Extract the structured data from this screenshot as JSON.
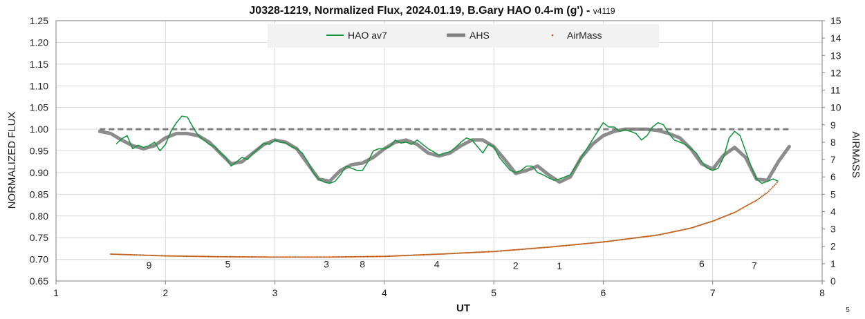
{
  "chart_data": {
    "type": "line",
    "title_main": "J0328-1219, Normalized Flux, 2024.01.19, B.Gary HAO 0.4-m (g')",
    "title_dash": " - ",
    "title_version": "v4119",
    "xlabel": "UT",
    "ylabel": "NORMALIZED FLUX",
    "y2label": "AIRMASS",
    "corner_note": "5",
    "xlim": [
      1,
      8
    ],
    "ylim": [
      0.65,
      1.25
    ],
    "y2lim": [
      0,
      15
    ],
    "x_ticks": [
      "1",
      "2",
      "3",
      "4",
      "5",
      "6",
      "7",
      "8"
    ],
    "y_ticks": [
      "0.65",
      "0.70",
      "0.75",
      "0.80",
      "0.85",
      "0.90",
      "0.95",
      "1.00",
      "1.05",
      "1.10",
      "1.15",
      "1.20",
      "1.25"
    ],
    "y2_ticks": [
      "0",
      "1",
      "2",
      "3",
      "4",
      "5",
      "6",
      "7",
      "8",
      "9",
      "10",
      "11",
      "12",
      "13",
      "14",
      "15"
    ],
    "grid": true,
    "legend_position": "top-center",
    "reference_line": {
      "y": 1.0,
      "x_start": 1.4,
      "x_end": 7.7,
      "color": "#7f7f7f"
    },
    "series": [
      {
        "name": "HAO av7",
        "color": "#1a9641",
        "axis": "left",
        "points": [
          [
            1.55,
            0.966
          ],
          [
            1.6,
            0.978
          ],
          [
            1.65,
            0.985
          ],
          [
            1.7,
            0.955
          ],
          [
            1.75,
            0.963
          ],
          [
            1.8,
            0.958
          ],
          [
            1.85,
            0.962
          ],
          [
            1.9,
            0.97
          ],
          [
            1.95,
            0.95
          ],
          [
            2.0,
            0.965
          ],
          [
            2.05,
            0.995
          ],
          [
            2.1,
            1.015
          ],
          [
            2.15,
            1.03
          ],
          [
            2.2,
            1.028
          ],
          [
            2.25,
            1.005
          ],
          [
            2.3,
            0.985
          ],
          [
            2.35,
            0.975
          ],
          [
            2.4,
            0.965
          ],
          [
            2.45,
            0.96
          ],
          [
            2.5,
            0.945
          ],
          [
            2.55,
            0.935
          ],
          [
            2.6,
            0.915
          ],
          [
            2.65,
            0.925
          ],
          [
            2.7,
            0.935
          ],
          [
            2.75,
            0.93
          ],
          [
            2.8,
            0.945
          ],
          [
            2.85,
            0.955
          ],
          [
            2.9,
            0.968
          ],
          [
            2.95,
            0.965
          ],
          [
            3.0,
            0.975
          ],
          [
            3.05,
            0.97
          ],
          [
            3.1,
            0.968
          ],
          [
            3.15,
            0.96
          ],
          [
            3.2,
            0.955
          ],
          [
            3.25,
            0.945
          ],
          [
            3.3,
            0.925
          ],
          [
            3.35,
            0.9
          ],
          [
            3.4,
            0.885
          ],
          [
            3.45,
            0.878
          ],
          [
            3.5,
            0.875
          ],
          [
            3.55,
            0.88
          ],
          [
            3.6,
            0.895
          ],
          [
            3.65,
            0.915
          ],
          [
            3.7,
            0.91
          ],
          [
            3.75,
            0.905
          ],
          [
            3.8,
            0.905
          ],
          [
            3.85,
            0.925
          ],
          [
            3.9,
            0.95
          ],
          [
            3.95,
            0.955
          ],
          [
            4.0,
            0.955
          ],
          [
            4.05,
            0.96
          ],
          [
            4.1,
            0.975
          ],
          [
            4.15,
            0.968
          ],
          [
            4.2,
            0.97
          ],
          [
            4.25,
            0.965
          ],
          [
            4.3,
            0.975
          ],
          [
            4.35,
            0.965
          ],
          [
            4.4,
            0.955
          ],
          [
            4.45,
            0.948
          ],
          [
            4.5,
            0.94
          ],
          [
            4.55,
            0.945
          ],
          [
            4.6,
            0.948
          ],
          [
            4.65,
            0.958
          ],
          [
            4.7,
            0.97
          ],
          [
            4.75,
            0.98
          ],
          [
            4.8,
            0.975
          ],
          [
            4.85,
            0.96
          ],
          [
            4.9,
            0.945
          ],
          [
            4.95,
            0.965
          ],
          [
            5.0,
            0.96
          ],
          [
            5.05,
            0.935
          ],
          [
            5.1,
            0.92
          ],
          [
            5.15,
            0.905
          ],
          [
            5.2,
            0.9
          ],
          [
            5.25,
            0.905
          ],
          [
            5.3,
            0.915
          ],
          [
            5.35,
            0.915
          ],
          [
            5.4,
            0.9
          ],
          [
            5.45,
            0.895
          ],
          [
            5.5,
            0.888
          ],
          [
            5.55,
            0.882
          ],
          [
            5.6,
            0.885
          ],
          [
            5.65,
            0.89
          ],
          [
            5.7,
            0.895
          ],
          [
            5.75,
            0.915
          ],
          [
            5.8,
            0.935
          ],
          [
            5.85,
            0.955
          ],
          [
            5.9,
            0.975
          ],
          [
            5.95,
            0.995
          ],
          [
            6.0,
            1.015
          ],
          [
            6.05,
            1.005
          ],
          [
            6.1,
            1.005
          ],
          [
            6.15,
            0.995
          ],
          [
            6.2,
            0.998
          ],
          [
            6.25,
            0.995
          ],
          [
            6.3,
            0.99
          ],
          [
            6.35,
            0.975
          ],
          [
            6.4,
            0.985
          ],
          [
            6.45,
            1.005
          ],
          [
            6.5,
            1.015
          ],
          [
            6.55,
            1.01
          ],
          [
            6.6,
            0.99
          ],
          [
            6.65,
            0.975
          ],
          [
            6.7,
            0.97
          ],
          [
            6.75,
            0.965
          ],
          [
            6.8,
            0.955
          ],
          [
            6.85,
            0.945
          ],
          [
            6.9,
            0.925
          ],
          [
            6.95,
            0.91
          ],
          [
            7.0,
            0.905
          ],
          [
            7.05,
            0.91
          ],
          [
            7.1,
            0.935
          ],
          [
            7.15,
            0.98
          ],
          [
            7.2,
            0.995
          ],
          [
            7.25,
            0.985
          ],
          [
            7.3,
            0.95
          ],
          [
            7.35,
            0.915
          ],
          [
            7.4,
            0.885
          ],
          [
            7.45,
            0.875
          ],
          [
            7.5,
            0.88
          ],
          [
            7.55,
            0.885
          ],
          [
            7.6,
            0.88
          ]
        ]
      },
      {
        "name": "AHS",
        "color": "#808080",
        "axis": "left",
        "points": [
          [
            1.4,
            0.995
          ],
          [
            1.5,
            0.99
          ],
          [
            1.6,
            0.975
          ],
          [
            1.7,
            0.962
          ],
          [
            1.8,
            0.955
          ],
          [
            1.9,
            0.962
          ],
          [
            2.0,
            0.98
          ],
          [
            2.1,
            0.99
          ],
          [
            2.2,
            0.99
          ],
          [
            2.3,
            0.985
          ],
          [
            2.4,
            0.97
          ],
          [
            2.5,
            0.945
          ],
          [
            2.6,
            0.92
          ],
          [
            2.7,
            0.925
          ],
          [
            2.8,
            0.945
          ],
          [
            2.9,
            0.965
          ],
          [
            3.0,
            0.975
          ],
          [
            3.1,
            0.97
          ],
          [
            3.2,
            0.955
          ],
          [
            3.3,
            0.92
          ],
          [
            3.4,
            0.885
          ],
          [
            3.5,
            0.88
          ],
          [
            3.6,
            0.905
          ],
          [
            3.7,
            0.918
          ],
          [
            3.8,
            0.922
          ],
          [
            3.9,
            0.935
          ],
          [
            4.0,
            0.955
          ],
          [
            4.1,
            0.97
          ],
          [
            4.2,
            0.975
          ],
          [
            4.3,
            0.965
          ],
          [
            4.4,
            0.945
          ],
          [
            4.5,
            0.938
          ],
          [
            4.6,
            0.945
          ],
          [
            4.7,
            0.962
          ],
          [
            4.8,
            0.975
          ],
          [
            4.9,
            0.975
          ],
          [
            5.0,
            0.96
          ],
          [
            5.1,
            0.93
          ],
          [
            5.2,
            0.898
          ],
          [
            5.3,
            0.905
          ],
          [
            5.4,
            0.915
          ],
          [
            5.5,
            0.895
          ],
          [
            5.6,
            0.878
          ],
          [
            5.7,
            0.89
          ],
          [
            5.8,
            0.935
          ],
          [
            5.9,
            0.965
          ],
          [
            6.0,
            0.985
          ],
          [
            6.1,
            0.995
          ],
          [
            6.2,
            1.0
          ],
          [
            6.3,
            1.0
          ],
          [
            6.4,
            1.0
          ],
          [
            6.5,
            0.997
          ],
          [
            6.6,
            0.99
          ],
          [
            6.7,
            0.98
          ],
          [
            6.8,
            0.955
          ],
          [
            6.9,
            0.92
          ],
          [
            7.0,
            0.908
          ],
          [
            7.1,
            0.94
          ],
          [
            7.2,
            0.958
          ],
          [
            7.3,
            0.935
          ],
          [
            7.4,
            0.885
          ],
          [
            7.5,
            0.882
          ],
          [
            7.6,
            0.925
          ],
          [
            7.7,
            0.96
          ]
        ]
      },
      {
        "name": "AirMass",
        "color": "#c0621e",
        "axis": "right",
        "marker": "dots",
        "points": [
          [
            1.5,
            1.55
          ],
          [
            2.0,
            1.45
          ],
          [
            2.5,
            1.4
          ],
          [
            3.0,
            1.38
          ],
          [
            3.5,
            1.38
          ],
          [
            4.0,
            1.42
          ],
          [
            4.5,
            1.55
          ],
          [
            5.0,
            1.7
          ],
          [
            5.5,
            1.95
          ],
          [
            6.0,
            2.25
          ],
          [
            6.5,
            2.65
          ],
          [
            6.8,
            3.05
          ],
          [
            7.0,
            3.45
          ],
          [
            7.2,
            3.95
          ],
          [
            7.4,
            4.65
          ],
          [
            7.5,
            5.1
          ],
          [
            7.6,
            5.75
          ]
        ]
      }
    ],
    "annotations": [
      {
        "text": "9",
        "x": 1.85,
        "y": 0.687
      },
      {
        "text": "5",
        "x": 2.57,
        "y": 0.689
      },
      {
        "text": "3",
        "x": 3.47,
        "y": 0.689
      },
      {
        "text": "8",
        "x": 3.8,
        "y": 0.689
      },
      {
        "text": "4",
        "x": 4.48,
        "y": 0.689
      },
      {
        "text": "2",
        "x": 5.2,
        "y": 0.686
      },
      {
        "text": "1",
        "x": 5.6,
        "y": 0.685
      },
      {
        "text": "6",
        "x": 6.9,
        "y": 0.69
      },
      {
        "text": "7",
        "x": 7.38,
        "y": 0.686
      }
    ]
  }
}
